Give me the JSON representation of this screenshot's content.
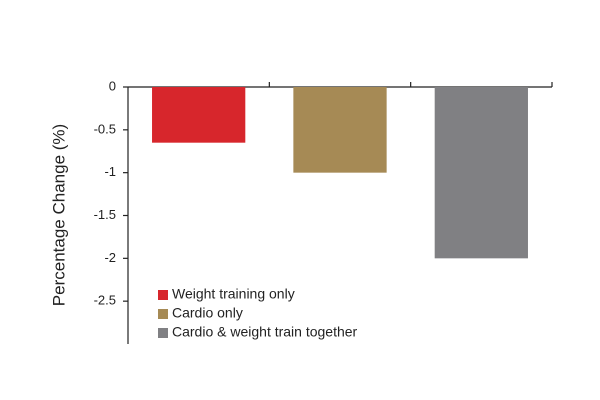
{
  "chart_data": {
    "type": "bar",
    "y_label": "Percentage Change (%)",
    "categories": [
      "Weight training only",
      "Cardio only",
      "Cardio & weight train together"
    ],
    "values": [
      -0.65,
      -1.0,
      -2.0
    ],
    "colors": [
      "#d7262c",
      "#a68a55",
      "#808083"
    ],
    "ylim": [
      -3,
      0
    ],
    "yticks": [
      0,
      -0.5,
      -1,
      -1.5,
      -2,
      -2.5
    ],
    "grid": false,
    "legend": "lower left"
  }
}
